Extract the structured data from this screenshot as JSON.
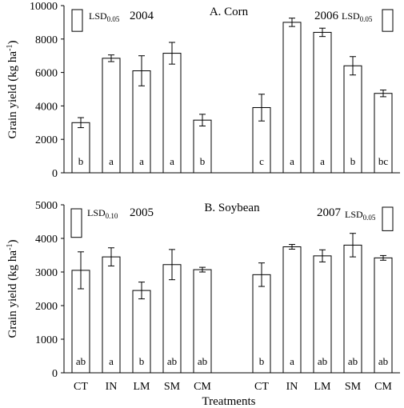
{
  "x_label": "Treatments",
  "chart_data": [
    {
      "type": "bar",
      "title": "A. Corn",
      "ylabel": "Grain yield (kg ha",
      "ylabel_sup": "-1",
      "ylabel_close": ")",
      "ylim": [
        0,
        10000
      ],
      "yticks": [
        0,
        2000,
        4000,
        6000,
        8000,
        10000
      ],
      "yticklabels": [
        "0",
        "2000",
        "4000",
        "6000",
        "8000",
        "10000"
      ],
      "groups": [
        {
          "year": "2004",
          "lsd": {
            "text": "LSD",
            "sub": "0.05",
            "value": 1300
          },
          "categories": [
            "CT",
            "IN",
            "LM",
            "SM",
            "CM"
          ],
          "values": [
            3000,
            6850,
            6100,
            7150,
            3150
          ],
          "errors": [
            300,
            200,
            900,
            650,
            350
          ],
          "letters": [
            "b",
            "a",
            "a",
            "a",
            "b"
          ]
        },
        {
          "year": "2006",
          "lsd": {
            "text": "LSD",
            "sub": "0.05",
            "value": 1300
          },
          "categories": [
            "CT",
            "IN",
            "LM",
            "SM",
            "CM"
          ],
          "values": [
            3900,
            9000,
            8400,
            6400,
            4750
          ],
          "errors": [
            800,
            250,
            250,
            550,
            200
          ],
          "letters": [
            "c",
            "a",
            "a",
            "b",
            "bc"
          ]
        }
      ]
    },
    {
      "type": "bar",
      "title": "B. Soybean",
      "ylabel": "Grain yield (kg ha",
      "ylabel_sup": "-1",
      "ylabel_close": ")",
      "ylim": [
        0,
        5000
      ],
      "yticks": [
        0,
        1000,
        2000,
        3000,
        4000,
        5000
      ],
      "yticklabels": [
        "0",
        "1000",
        "2000",
        "3000",
        "4000",
        "5000"
      ],
      "groups": [
        {
          "year": "2005",
          "lsd": {
            "text": "LSD",
            "sub": "0.10",
            "value": 850
          },
          "categories": [
            "CT",
            "IN",
            "LM",
            "SM",
            "CM"
          ],
          "values": [
            3050,
            3450,
            2450,
            3220,
            3070
          ],
          "errors": [
            550,
            270,
            250,
            450,
            70
          ],
          "letters": [
            "ab",
            "a",
            "b",
            "ab",
            "ab"
          ]
        },
        {
          "year": "2007",
          "lsd": {
            "text": "LSD",
            "sub": "0.05",
            "value": 700
          },
          "categories": [
            "CT",
            "IN",
            "LM",
            "SM",
            "CM"
          ],
          "values": [
            2920,
            3750,
            3480,
            3800,
            3420
          ],
          "errors": [
            350,
            70,
            180,
            350,
            70
          ],
          "letters": [
            "b",
            "a",
            "ab",
            "ab",
            "ab"
          ]
        }
      ]
    }
  ]
}
